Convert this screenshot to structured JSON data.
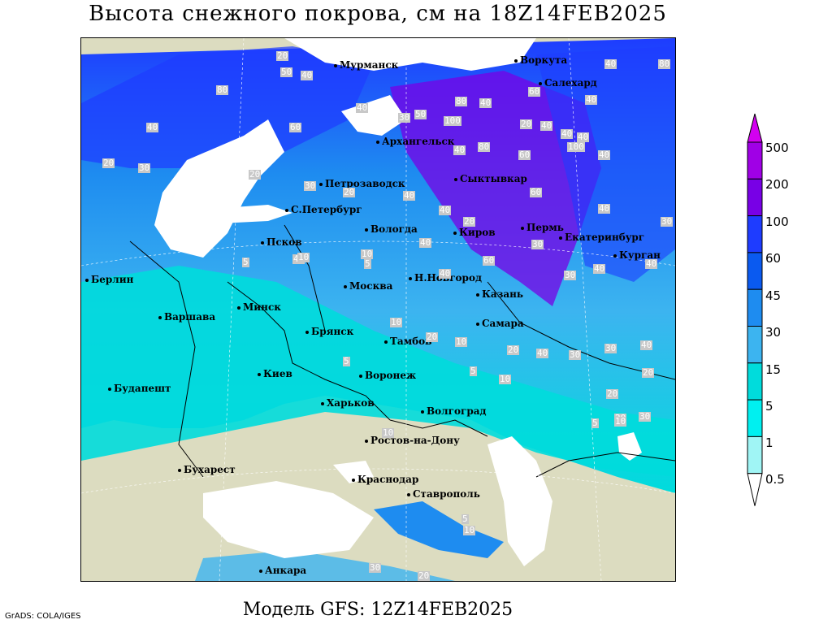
{
  "title": "Высота снежного покрова, см на 18Z14FEB2025",
  "footer": "Модель GFS: 12Z14FEB2025",
  "credit": "GrADS: COLA/IGES",
  "legend": {
    "unit": "см",
    "levels": [
      {
        "label": "500",
        "color": "#d200f0"
      },
      {
        "label": "200",
        "color": "#a000e6"
      },
      {
        "label": "100",
        "color": "#7800e6"
      },
      {
        "label": "60",
        "color": "#1e3cff"
      },
      {
        "label": "45",
        "color": "#0a5af0"
      },
      {
        "label": "30",
        "color": "#1e8cf0"
      },
      {
        "label": "15",
        "color": "#3cb4f0"
      },
      {
        "label": "5",
        "color": "#00dcdc"
      },
      {
        "label": "1",
        "color": "#00f0f0"
      },
      {
        "label": "0.5",
        "color": "#a0f5f5"
      }
    ]
  },
  "cities": [
    {
      "name": "Мурманск"
    },
    {
      "name": "Воркута"
    },
    {
      "name": "Салехард"
    },
    {
      "name": "Архангельск"
    },
    {
      "name": "Сыктывкар"
    },
    {
      "name": "Петрозаводск"
    },
    {
      "name": "С.Петербург"
    },
    {
      "name": "Вологда"
    },
    {
      "name": "Киров"
    },
    {
      "name": "Пермь"
    },
    {
      "name": "Екатеринбург"
    },
    {
      "name": "Курган"
    },
    {
      "name": "Псков"
    },
    {
      "name": "Н.Новгород"
    },
    {
      "name": "Казань"
    },
    {
      "name": "Берлин"
    },
    {
      "name": "Москва"
    },
    {
      "name": "Минск"
    },
    {
      "name": "Варшава"
    },
    {
      "name": "Брянск"
    },
    {
      "name": "Самара"
    },
    {
      "name": "Тамбов"
    },
    {
      "name": "Киев"
    },
    {
      "name": "Воронеж"
    },
    {
      "name": "Будапешт"
    },
    {
      "name": "Харьков"
    },
    {
      "name": "Волгоград"
    },
    {
      "name": "Ростов-на-Дону"
    },
    {
      "name": "Бухарест"
    },
    {
      "name": "Краснодар"
    },
    {
      "name": "Ставрополь"
    },
    {
      "name": "Анкара"
    }
  ],
  "contour_labels": [
    "20",
    "50",
    "40",
    "40",
    "80",
    "80",
    "60",
    "40",
    "40",
    "40",
    "80",
    "40",
    "30",
    "50",
    "100",
    "40",
    "60",
    "40",
    "40",
    "100",
    "80",
    "40",
    "60",
    "40",
    "20",
    "30",
    "20",
    "60",
    "20",
    "30",
    "40",
    "40",
    "40",
    "20",
    "30",
    "30",
    "40",
    "40",
    "30",
    "60",
    "40",
    "10",
    "40",
    "40",
    "5",
    "10",
    "5",
    "10",
    "20",
    "30",
    "40",
    "20",
    "40",
    "10",
    "30",
    "20",
    "20",
    "20",
    "10",
    "30",
    "10",
    "5",
    "10",
    "5",
    "5",
    "20",
    "5",
    "10",
    "30",
    "20"
  ]
}
